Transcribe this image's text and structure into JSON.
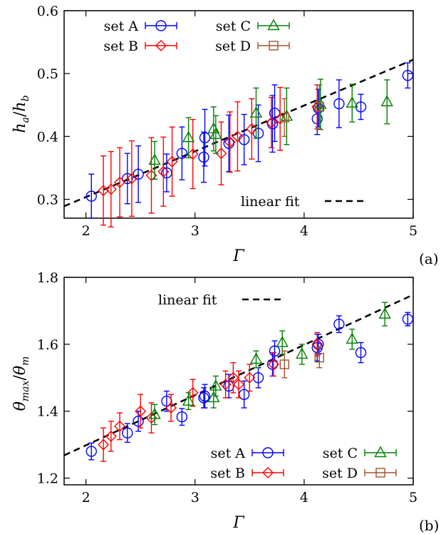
{
  "colors": {
    "A": "#0000ff",
    "B": "#ff0000",
    "C": "#008000",
    "D": "#a0522d",
    "fit": "#000000"
  },
  "chart_data": [
    {
      "type": "scatter",
      "panel_label": "(a)",
      "xlabel": "Γ",
      "ylabel_main": "h",
      "ylabel_sub_a": "a",
      "ylabel_sub_b": "b",
      "xlim": [
        1.8,
        5.0
      ],
      "ylim": [
        0.27,
        0.6
      ],
      "xticks": [
        "2",
        "3",
        "4",
        "5"
      ],
      "yticks": [
        "0.3",
        "0.4",
        "0.5",
        "0.6"
      ],
      "legend_placement": "top-left",
      "fit": {
        "label": "linear fit",
        "x": [
          1.8,
          5.0
        ],
        "y": [
          0.289,
          0.522
        ]
      },
      "series": [
        {
          "name": "set A",
          "marker": "circle",
          "x": [
            2.05,
            2.38,
            2.48,
            2.74,
            2.88,
            3.08,
            3.09,
            3.31,
            3.45,
            3.58,
            3.71,
            3.73,
            4.12,
            4.13,
            4.32,
            4.52,
            4.95
          ],
          "y": [
            0.305,
            0.333,
            0.34,
            0.342,
            0.373,
            0.367,
            0.398,
            0.389,
            0.395,
            0.405,
            0.42,
            0.437,
            0.428,
            0.445,
            0.452,
            0.447,
            0.497
          ],
          "err": [
            0.035,
            0.04,
            0.045,
            0.03,
            0.042,
            0.04,
            0.045,
            0.045,
            0.04,
            0.045,
            0.045,
            0.045,
            0.025,
            0.03,
            0.038,
            0.02,
            0.02
          ]
        },
        {
          "name": "set B",
          "marker": "diamond",
          "x": [
            2.16,
            2.23,
            2.31,
            2.42,
            2.6,
            2.71,
            2.79,
            2.98,
            3.24,
            3.32,
            3.39,
            3.52,
            3.7,
            3.78,
            4.12
          ],
          "y": [
            0.314,
            0.316,
            0.327,
            0.333,
            0.338,
            0.344,
            0.36,
            0.372,
            0.373,
            0.391,
            0.4,
            0.412,
            0.422,
            0.428,
            0.447
          ],
          "err": [
            0.055,
            0.06,
            0.055,
            0.06,
            0.06,
            0.055,
            0.055,
            0.055,
            0.05,
            0.048,
            0.055,
            0.048,
            0.04,
            0.05,
            0.035
          ]
        },
        {
          "name": "set C",
          "marker": "triangle",
          "x": [
            2.63,
            2.94,
            3.17,
            3.19,
            3.56,
            3.84,
            4.15,
            4.44,
            4.76
          ],
          "y": [
            0.362,
            0.398,
            0.412,
            0.403,
            0.437,
            0.432,
            0.451,
            0.453,
            0.455
          ],
          "err": [
            0.03,
            0.032,
            0.035,
            0.03,
            0.04,
            0.045,
            0.04,
            0.03,
            0.035
          ]
        },
        {
          "name": "set D",
          "marker": "square",
          "x": [
            3.82,
            4.14
          ],
          "y": [
            0.43,
            0.447
          ],
          "err": [
            0.03,
            0.035
          ]
        }
      ]
    },
    {
      "type": "scatter",
      "panel_label": "(b)",
      "xlabel": "Γ",
      "ylabel_num": "θ",
      "ylabel_num_sub": "max",
      "ylabel_den": "θ",
      "ylabel_den_sub": "m",
      "xlim": [
        1.8,
        5.0
      ],
      "ylim": [
        1.18,
        1.8
      ],
      "xticks": [
        "2",
        "3",
        "4",
        "5"
      ],
      "yticks": [
        "1.2",
        "1.4",
        "1.6",
        "1.8"
      ],
      "legend_placement": "bottom-right",
      "fit": {
        "label": "linear fit",
        "x": [
          1.8,
          5.0
        ],
        "y": [
          1.268,
          1.748
        ]
      },
      "series": [
        {
          "name": "set A",
          "marker": "circle",
          "x": [
            2.05,
            2.38,
            2.48,
            2.74,
            2.88,
            3.08,
            3.09,
            3.31,
            3.45,
            3.58,
            3.71,
            3.73,
            4.12,
            4.13,
            4.32,
            4.52,
            4.95
          ],
          "y": [
            1.28,
            1.335,
            1.37,
            1.43,
            1.383,
            1.44,
            1.445,
            1.475,
            1.45,
            1.5,
            1.54,
            1.58,
            1.59,
            1.6,
            1.66,
            1.575,
            1.675
          ],
          "err": [
            0.025,
            0.028,
            0.03,
            0.03,
            0.025,
            0.03,
            0.035,
            0.035,
            0.04,
            0.03,
            0.035,
            0.03,
            0.04,
            0.03,
            0.025,
            0.03,
            0.02
          ]
        },
        {
          "name": "set B",
          "marker": "diamond",
          "x": [
            2.16,
            2.23,
            2.31,
            2.5,
            2.6,
            2.78,
            2.98,
            3.28,
            3.35,
            3.4,
            3.5,
            3.72,
            4.12
          ],
          "y": [
            1.3,
            1.325,
            1.355,
            1.4,
            1.38,
            1.41,
            1.455,
            1.48,
            1.5,
            1.48,
            1.5,
            1.54,
            1.6
          ],
          "err": [
            0.05,
            0.045,
            0.04,
            0.05,
            0.045,
            0.04,
            0.04,
            0.04,
            0.045,
            0.04,
            0.04,
            0.035,
            0.035
          ]
        },
        {
          "name": "set C",
          "marker": "triangle",
          "x": [
            2.63,
            2.94,
            3.17,
            3.19,
            3.56,
            3.8,
            3.98,
            4.44,
            4.74
          ],
          "y": [
            1.39,
            1.43,
            1.44,
            1.475,
            1.555,
            1.605,
            1.57,
            1.615,
            1.69
          ],
          "err": [
            0.03,
            0.025,
            0.03,
            0.03,
            0.025,
            0.035,
            0.03,
            0.03,
            0.035
          ]
        },
        {
          "name": "set D",
          "marker": "square",
          "x": [
            3.82,
            4.14
          ],
          "y": [
            1.54,
            1.56
          ],
          "err": [
            0.04,
            0.03
          ]
        }
      ]
    }
  ]
}
